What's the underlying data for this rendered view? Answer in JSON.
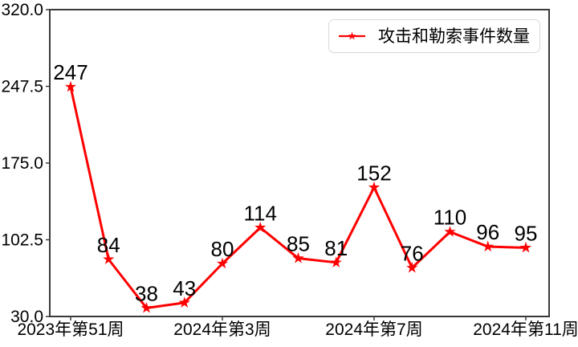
{
  "chart_data": {
    "type": "line",
    "title": "",
    "series": [
      {
        "name": "攻击和勒索事件数量",
        "color": "#ff0000",
        "marker": "star",
        "values": [
          247,
          84,
          38,
          43,
          80,
          114,
          85,
          81,
          152,
          76,
          110,
          96,
          95
        ]
      }
    ],
    "data_labels": [
      "247",
      "84",
      "38",
      "43",
      "80",
      "114",
      "85",
      "81",
      "152",
      "76",
      "110",
      "96",
      "95"
    ],
    "x_tick_labels": [
      "2023年第51周",
      "2024年第3周",
      "2024年第7周",
      "2024年第11周"
    ],
    "x_tick_indices": [
      0,
      4,
      8,
      12
    ],
    "n_points": 13,
    "y_tick_labels": [
      "320.0",
      "247.5",
      "175.0",
      "102.5",
      "30.0"
    ],
    "y_ticks": [
      320.0,
      247.5,
      175.0,
      102.5,
      30.0
    ],
    "ylim": [
      30,
      320
    ],
    "grid": false,
    "legend_position": "upper right",
    "colors": {
      "line": "#ff0000",
      "marker": "#ff0000",
      "text": "#000000",
      "frame": "#3a3a3a",
      "legend_border": "#d9d9d9",
      "background": "#ffffff"
    }
  }
}
